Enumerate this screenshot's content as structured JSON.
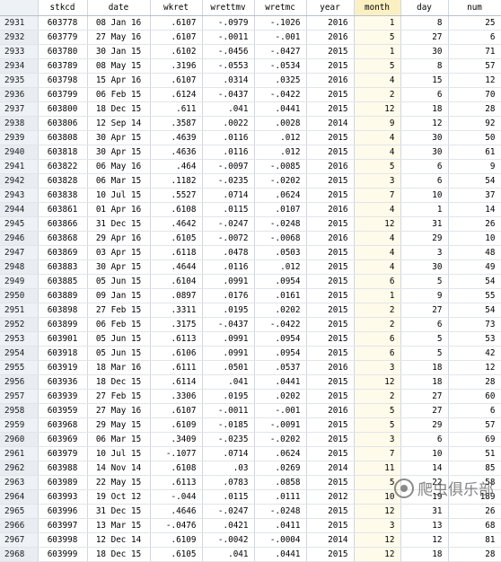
{
  "columns": {
    "c0": "",
    "c1": "stkcd",
    "c2": "date",
    "c3": "wkret",
    "c4": "wrettmv",
    "c5": "wretmc",
    "c6": "year",
    "c7": "month",
    "c8": "day",
    "c9": "num"
  },
  "selected_column": "month",
  "accent_colors": {
    "selected_header": "#fbf0c2",
    "row_header_bg": "#eef1f5"
  },
  "rows": [
    [
      "2931",
      "603778",
      "08 Jan 16",
      ".6107",
      "-.0979",
      "-.1026",
      "2016",
      "1",
      "8",
      "25"
    ],
    [
      "2932",
      "603779",
      "27 May 16",
      ".6107",
      "-.0011",
      "-.001",
      "2016",
      "5",
      "27",
      "6"
    ],
    [
      "2933",
      "603780",
      "30 Jan 15",
      ".6102",
      "-.0456",
      "-.0427",
      "2015",
      "1",
      "30",
      "71"
    ],
    [
      "2934",
      "603789",
      "08 May 15",
      ".3196",
      "-.0553",
      "-.0534",
      "2015",
      "5",
      "8",
      "57"
    ],
    [
      "2935",
      "603798",
      "15 Apr 16",
      ".6107",
      ".0314",
      ".0325",
      "2016",
      "4",
      "15",
      "12"
    ],
    [
      "2936",
      "603799",
      "06 Feb 15",
      ".6124",
      "-.0437",
      "-.0422",
      "2015",
      "2",
      "6",
      "70"
    ],
    [
      "2937",
      "603800",
      "18 Dec 15",
      ".611",
      ".041",
      ".0441",
      "2015",
      "12",
      "18",
      "28"
    ],
    [
      "2938",
      "603806",
      "12 Sep 14",
      ".3587",
      ".0022",
      ".0028",
      "2014",
      "9",
      "12",
      "92"
    ],
    [
      "2939",
      "603808",
      "30 Apr 15",
      ".4639",
      ".0116",
      ".012",
      "2015",
      "4",
      "30",
      "50"
    ],
    [
      "2940",
      "603818",
      "30 Apr 15",
      ".4636",
      ".0116",
      ".012",
      "2015",
      "4",
      "30",
      "61"
    ],
    [
      "2941",
      "603822",
      "06 May 16",
      ".464",
      "-.0097",
      "-.0085",
      "2016",
      "5",
      "6",
      "9"
    ],
    [
      "2942",
      "603828",
      "06 Mar 15",
      ".1182",
      "-.0235",
      "-.0202",
      "2015",
      "3",
      "6",
      "54"
    ],
    [
      "2943",
      "603838",
      "10 Jul 15",
      ".5527",
      ".0714",
      ".0624",
      "2015",
      "7",
      "10",
      "37"
    ],
    [
      "2944",
      "603861",
      "01 Apr 16",
      ".6108",
      ".0115",
      ".0107",
      "2016",
      "4",
      "1",
      "14"
    ],
    [
      "2945",
      "603866",
      "31 Dec 15",
      ".4642",
      "-.0247",
      "-.0248",
      "2015",
      "12",
      "31",
      "26"
    ],
    [
      "2946",
      "603868",
      "29 Apr 16",
      ".6105",
      "-.0072",
      "-.0068",
      "2016",
      "4",
      "29",
      "10"
    ],
    [
      "2947",
      "603869",
      "03 Apr 15",
      ".6118",
      ".0478",
      ".0503",
      "2015",
      "4",
      "3",
      "48"
    ],
    [
      "2948",
      "603883",
      "30 Apr 15",
      ".4644",
      ".0116",
      ".012",
      "2015",
      "4",
      "30",
      "49"
    ],
    [
      "2949",
      "603885",
      "05 Jun 15",
      ".6104",
      ".0991",
      ".0954",
      "2015",
      "6",
      "5",
      "54"
    ],
    [
      "2950",
      "603889",
      "09 Jan 15",
      ".0897",
      ".0176",
      ".0161",
      "2015",
      "1",
      "9",
      "55"
    ],
    [
      "2951",
      "603898",
      "27 Feb 15",
      ".3311",
      ".0195",
      ".0202",
      "2015",
      "2",
      "27",
      "54"
    ],
    [
      "2952",
      "603899",
      "06 Feb 15",
      ".3175",
      "-.0437",
      "-.0422",
      "2015",
      "2",
      "6",
      "73"
    ],
    [
      "2953",
      "603901",
      "05 Jun 15",
      ".6113",
      ".0991",
      ".0954",
      "2015",
      "6",
      "5",
      "53"
    ],
    [
      "2954",
      "603918",
      "05 Jun 15",
      ".6106",
      ".0991",
      ".0954",
      "2015",
      "6",
      "5",
      "42"
    ],
    [
      "2955",
      "603919",
      "18 Mar 16",
      ".6111",
      ".0501",
      ".0537",
      "2016",
      "3",
      "18",
      "12"
    ],
    [
      "2956",
      "603936",
      "18 Dec 15",
      ".6114",
      ".041",
      ".0441",
      "2015",
      "12",
      "18",
      "28"
    ],
    [
      "2957",
      "603939",
      "27 Feb 15",
      ".3306",
      ".0195",
      ".0202",
      "2015",
      "2",
      "27",
      "60"
    ],
    [
      "2958",
      "603959",
      "27 May 16",
      ".6107",
      "-.0011",
      "-.001",
      "2016",
      "5",
      "27",
      "6"
    ],
    [
      "2959",
      "603968",
      "29 May 15",
      ".6109",
      "-.0185",
      "-.0091",
      "2015",
      "5",
      "29",
      "57"
    ],
    [
      "2960",
      "603969",
      "06 Mar 15",
      ".3409",
      "-.0235",
      "-.0202",
      "2015",
      "3",
      "6",
      "69"
    ],
    [
      "2961",
      "603979",
      "10 Jul 15",
      "-.1077",
      ".0714",
      ".0624",
      "2015",
      "7",
      "10",
      "51"
    ],
    [
      "2962",
      "603988",
      "14 Nov 14",
      ".6108",
      ".03",
      ".0269",
      "2014",
      "11",
      "14",
      "85"
    ],
    [
      "2963",
      "603989",
      "22 May 15",
      ".6113",
      ".0783",
      ".0858",
      "2015",
      "5",
      "22",
      "58"
    ],
    [
      "2964",
      "603993",
      "19 Oct 12",
      "-.044",
      ".0115",
      ".0111",
      "2012",
      "10",
      "19",
      "189"
    ],
    [
      "2965",
      "603996",
      "31 Dec 15",
      ".4646",
      "-.0247",
      "-.0248",
      "2015",
      "12",
      "31",
      "26"
    ],
    [
      "2966",
      "603997",
      "13 Mar 15",
      "-.0476",
      ".0421",
      ".0411",
      "2015",
      "3",
      "13",
      "68"
    ],
    [
      "2967",
      "603998",
      "12 Dec 14",
      ".6109",
      "-.0042",
      "-.0004",
      "2014",
      "12",
      "12",
      "81"
    ],
    [
      "2968",
      "603999",
      "18 Dec 15",
      ".6105",
      ".041",
      ".0441",
      "2015",
      "12",
      "18",
      "28"
    ]
  ],
  "watermark": {
    "text": "爬虫俱乐部",
    "icon": "wechat-logo-icon"
  }
}
